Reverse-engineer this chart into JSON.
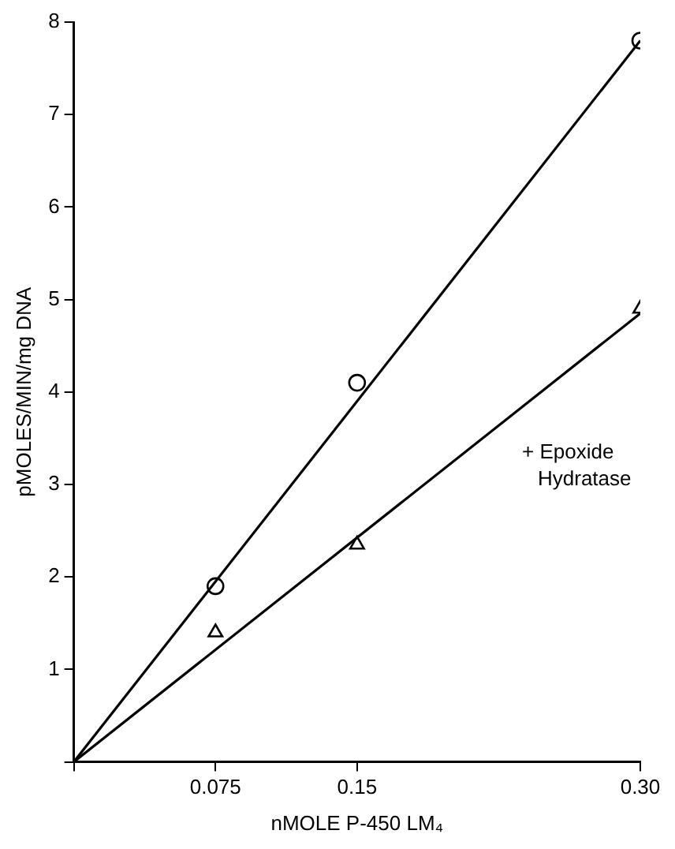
{
  "chart_data": {
    "type": "scatter",
    "xlabel": "nMOLE P-450 LM₄",
    "ylabel": "pMOLES/MIN/mg DNA",
    "xlim": [
      0,
      0.3
    ],
    "xticks": [
      {
        "value": 0,
        "label": null
      },
      0.075,
      0.15,
      {
        "value": 0.3,
        "label": "0.30"
      }
    ],
    "ylim": [
      0,
      8
    ],
    "yticks": [
      {
        "value": 0,
        "label": null
      },
      1,
      2,
      3,
      4,
      5,
      6,
      7,
      8
    ],
    "grid": false,
    "legend": false,
    "series": [
      {
        "type": "line",
        "color": "#000000",
        "x": [
          0,
          0.3
        ],
        "values": [
          0,
          7.8
        ],
        "marker": "none"
      },
      {
        "type": "line",
        "color": "#000000",
        "x": [
          0,
          0.3
        ],
        "values": [
          0,
          4.85
        ],
        "marker": "none"
      },
      {
        "color": "#000000",
        "x": [
          0.075,
          0.15,
          0.3
        ],
        "values": [
          1.9,
          4.1,
          7.8
        ],
        "marker": "circle"
      },
      {
        "name": "+ Epoxide Hydratase",
        "color": "#000000",
        "x": [
          0.075,
          0.15,
          0.3
        ],
        "values": [
          1.4,
          2.35,
          4.9
        ],
        "marker": "triangle"
      }
    ]
  }
}
